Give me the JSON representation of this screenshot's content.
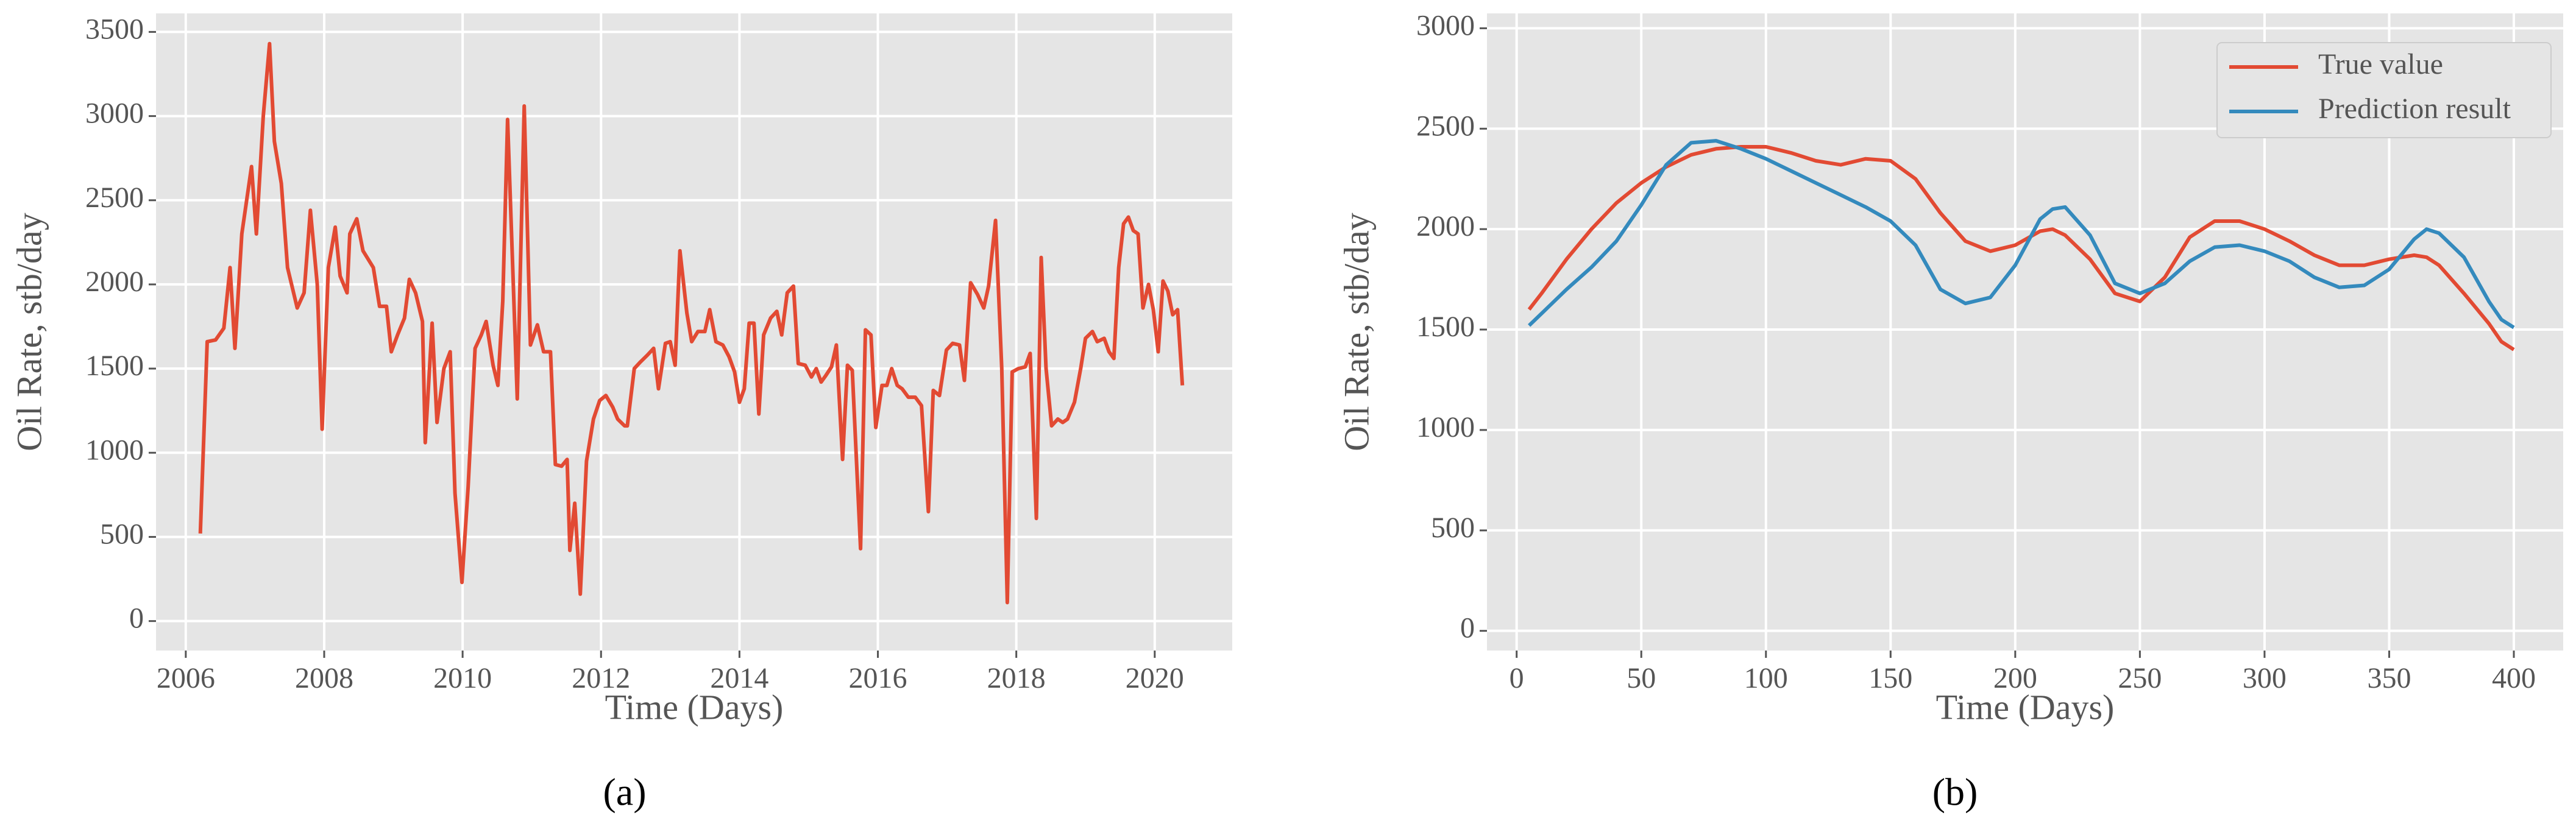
{
  "chart_data": [
    {
      "type": "line",
      "caption": "(a)",
      "xlabel": "Time (Days)",
      "ylabel": "Oil Rate, stb/day",
      "color": "#e24a33",
      "x": [
        2006.21,
        2006.31,
        2006.43,
        2006.55,
        2006.64,
        2006.71,
        2006.81,
        2006.95,
        2007.02,
        2007.12,
        2007.21,
        2007.28,
        2007.38,
        2007.47,
        2007.61,
        2007.71,
        2007.8,
        2007.9,
        2007.97,
        2008.06,
        2008.16,
        2008.23,
        2008.33,
        2008.37,
        2008.47,
        2008.56,
        2008.71,
        2008.8,
        2008.9,
        2008.97,
        2009.06,
        2009.16,
        2009.23,
        2009.32,
        2009.42,
        2009.46,
        2009.56,
        2009.63,
        2009.73,
        2009.82,
        2009.89,
        2009.99,
        2010.08,
        2010.18,
        2010.27,
        2010.34,
        2010.44,
        2010.51,
        2010.58,
        2010.65,
        2010.79,
        2010.89,
        2010.98,
        2011.08,
        2011.17,
        2011.27,
        2011.34,
        2011.43,
        2011.51,
        2011.55,
        2011.62,
        2011.7,
        2011.79,
        2011.89,
        2011.98,
        2012.07,
        2012.17,
        2012.24,
        2012.34,
        2012.38,
        2012.48,
        2012.57,
        2012.67,
        2012.76,
        2012.83,
        2012.93,
        2013,
        2013.07,
        2013.14,
        2013.24,
        2013.31,
        2013.4,
        2013.5,
        2013.57,
        2013.66,
        2013.76,
        2013.85,
        2013.93,
        2014,
        2014.07,
        2014.14,
        2014.21,
        2014.28,
        2014.35,
        2014.45,
        2014.54,
        2014.61,
        2014.69,
        2014.78,
        2014.85,
        2014.95,
        2015.04,
        2015.11,
        2015.18,
        2015.25,
        2015.33,
        2015.4,
        2015.49,
        2015.56,
        2015.63,
        2015.75,
        2015.82,
        2015.9,
        2015.97,
        2016.06,
        2016.13,
        2016.2,
        2016.28,
        2016.35,
        2016.44,
        2016.54,
        2016.63,
        2016.73,
        2016.8,
        2016.89,
        2016.99,
        2017.08,
        2017.18,
        2017.25,
        2017.34,
        2017.44,
        2017.53,
        2017.6,
        2017.7,
        2017.79,
        2017.87,
        2017.94,
        2018.03,
        2018.13,
        2018.2,
        2018.29,
        2018.36,
        2018.43,
        2018.51,
        2018.6,
        2018.67,
        2018.74,
        2018.84,
        2018.93,
        2019,
        2019.1,
        2019.17,
        2019.27,
        2019.34,
        2019.41,
        2019.48,
        2019.55,
        2019.62,
        2019.69,
        2019.76,
        2019.83,
        2019.91,
        2019.98,
        2020.05,
        2020.12,
        2020.19,
        2020.26,
        2020.33,
        2020.4
      ],
      "values": [
        520,
        1660,
        1670,
        1740,
        2100,
        1620,
        2300,
        2700,
        2300,
        3000,
        3430,
        2850,
        2600,
        2100,
        1860,
        1950,
        2440,
        2000,
        1140,
        2100,
        2340,
        2050,
        1950,
        2300,
        2390,
        2200,
        2100,
        1870,
        1870,
        1600,
        1700,
        1800,
        2030,
        1950,
        1780,
        1060,
        1770,
        1180,
        1500,
        1600,
        760,
        230,
        800,
        1620,
        1700,
        1780,
        1520,
        1400,
        1900,
        2980,
        1320,
        3060,
        1640,
        1760,
        1600,
        1600,
        930,
        920,
        960,
        420,
        700,
        160,
        950,
        1200,
        1310,
        1340,
        1270,
        1200,
        1160,
        1160,
        1500,
        1540,
        1580,
        1620,
        1380,
        1650,
        1660,
        1520,
        2200,
        1830,
        1660,
        1720,
        1720,
        1850,
        1660,
        1640,
        1570,
        1480,
        1300,
        1380,
        1770,
        1770,
        1230,
        1700,
        1800,
        1840,
        1700,
        1950,
        1990,
        1530,
        1520,
        1450,
        1500,
        1420,
        1460,
        1510,
        1640,
        960,
        1520,
        1490,
        430,
        1730,
        1700,
        1150,
        1400,
        1400,
        1500,
        1400,
        1380,
        1330,
        1330,
        1280,
        650,
        1370,
        1340,
        1610,
        1650,
        1640,
        1430,
        2010,
        1940,
        1860,
        1990,
        2380,
        1500,
        110,
        1480,
        1500,
        1510,
        1590,
        610,
        2160,
        1500,
        1160,
        1200,
        1180,
        1200,
        1300,
        1500,
        1680,
        1720,
        1660,
        1680,
        1600,
        1560,
        2100,
        2360,
        2400,
        2320,
        2300,
        1860,
        2000,
        1850,
        1600,
        2020,
        1960,
        1820,
        1850,
        1400
      ],
      "xlim": [
        2005.57,
        2021.12
      ],
      "ylim": [
        -175,
        3610
      ],
      "xticks": [
        2006,
        2008,
        2010,
        2012,
        2014,
        2016,
        2018,
        2020
      ],
      "yticks": [
        0,
        500,
        1000,
        1500,
        2000,
        2500,
        3000,
        3500
      ],
      "grid": true
    },
    {
      "type": "line",
      "caption": "(b)",
      "xlabel": "Time (Days)",
      "ylabel": "Oil Rate, stb/day",
      "legend": "upper right",
      "x": [
        5,
        10,
        20,
        30,
        40,
        50,
        60,
        70,
        80,
        90,
        100,
        110,
        120,
        130,
        140,
        150,
        160,
        170,
        180,
        190,
        200,
        210,
        215,
        220,
        230,
        240,
        250,
        260,
        270,
        280,
        290,
        300,
        310,
        320,
        330,
        340,
        350,
        360,
        365,
        370,
        380,
        390,
        395,
        400
      ],
      "series": [
        {
          "name": "True value",
          "color": "#e24a33",
          "values": [
            1600,
            1680,
            1850,
            2000,
            2130,
            2230,
            2310,
            2370,
            2400,
            2410,
            2410,
            2380,
            2340,
            2320,
            2350,
            2340,
            2250,
            2080,
            1940,
            1890,
            1920,
            1990,
            2000,
            1970,
            1850,
            1680,
            1640,
            1760,
            1960,
            2040,
            2040,
            2000,
            1940,
            1870,
            1820,
            1820,
            1850,
            1870,
            1860,
            1820,
            1680,
            1530,
            1440,
            1400
          ]
        },
        {
          "name": "Prediction result",
          "color": "#348abd",
          "values": [
            1520,
            1580,
            1700,
            1810,
            1940,
            2120,
            2320,
            2430,
            2440,
            2400,
            2350,
            2290,
            2230,
            2170,
            2110,
            2040,
            1920,
            1700,
            1630,
            1660,
            1820,
            2050,
            2100,
            2110,
            1970,
            1730,
            1680,
            1730,
            1840,
            1910,
            1920,
            1890,
            1840,
            1760,
            1710,
            1720,
            1800,
            1950,
            2000,
            1980,
            1860,
            1640,
            1550,
            1510
          ]
        }
      ],
      "xlim": [
        -11.9,
        419.8
      ],
      "ylim": [
        -98,
        3074
      ],
      "xticks": [
        0,
        50,
        100,
        150,
        200,
        250,
        300,
        350,
        400
      ],
      "yticks": [
        0,
        500,
        1000,
        1500,
        2000,
        2500,
        3000
      ],
      "grid": true
    }
  ]
}
